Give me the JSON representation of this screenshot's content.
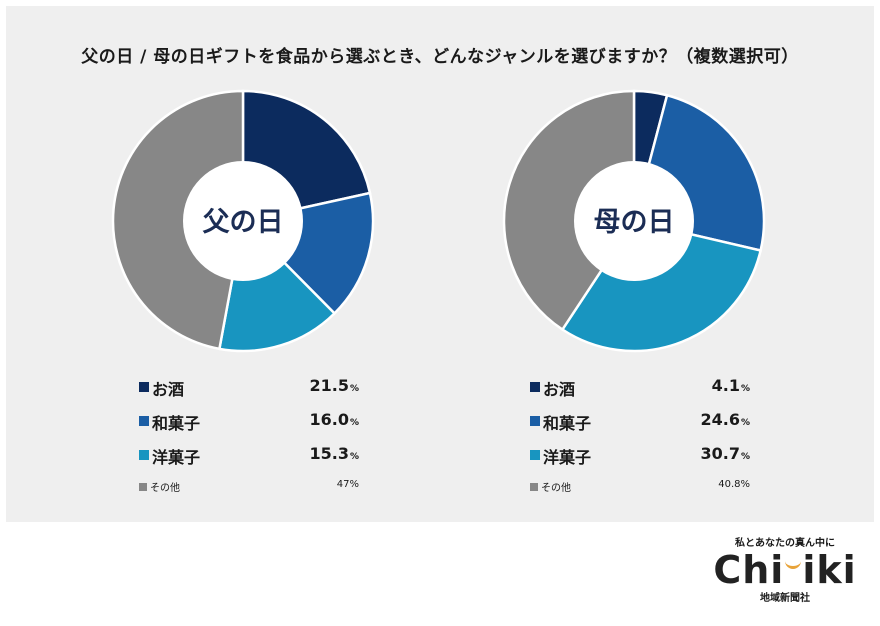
{
  "title": "父の日 / 母の日ギフトを食品から選ぶとき、どんなジャンルを選びますか？（複数選択可）",
  "chart_data": [
    {
      "type": "pie",
      "variant": "donut",
      "center_label": "父の日",
      "categories": [
        "お酒",
        "和菓子",
        "洋菓子",
        "その他"
      ],
      "values": [
        21.5,
        16.0,
        15.3,
        47
      ],
      "value_labels": [
        "21.5",
        "16.0",
        "15.3",
        "47"
      ],
      "colors": [
        "#0c2b5e",
        "#1b5ea5",
        "#1895c0",
        "#878787"
      ],
      "unit": "%"
    },
    {
      "type": "pie",
      "variant": "donut",
      "center_label": "母の日",
      "categories": [
        "お酒",
        "和菓子",
        "洋菓子",
        "その他"
      ],
      "values": [
        4.1,
        24.6,
        30.7,
        40.8
      ],
      "value_labels": [
        "4.1",
        "24.6",
        "30.7",
        "40.8"
      ],
      "colors": [
        "#0c2b5e",
        "#1b5ea5",
        "#1895c0",
        "#878787"
      ],
      "unit": "%"
    }
  ],
  "brand": {
    "tagline": "私とあなたの真ん中に",
    "logo_left": "Chi",
    "logo_right": "iki",
    "subtitle": "地域新聞社"
  }
}
